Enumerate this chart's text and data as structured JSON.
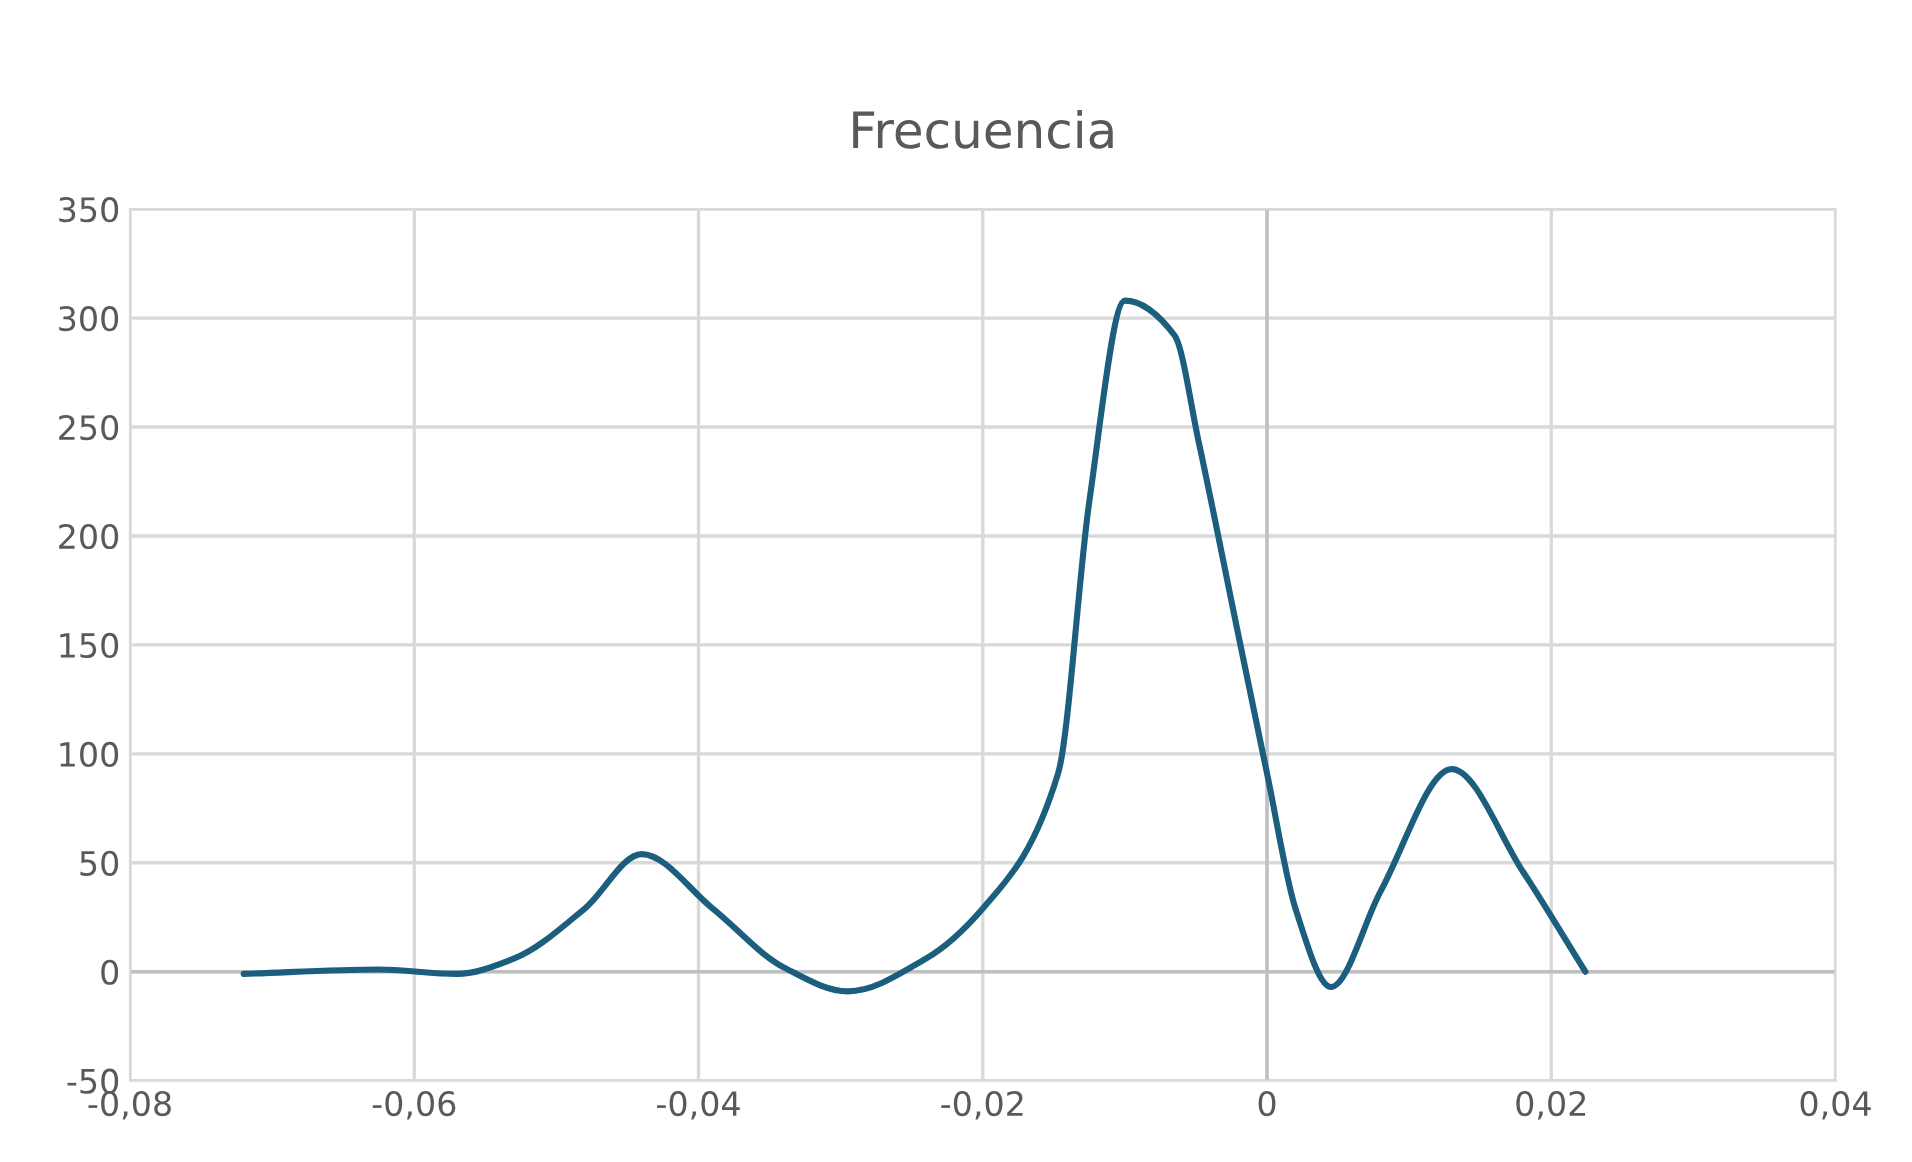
{
  "chart_data": {
    "type": "line",
    "title": "Frecuencia",
    "series": [
      {
        "color": "#1b5e7e",
        "x": [
          -0.072,
          -0.0625,
          -0.057,
          -0.053,
          -0.048,
          -0.044,
          -0.039,
          -0.034,
          -0.0295,
          -0.024,
          -0.02,
          -0.0147,
          -0.0125,
          -0.01,
          -0.0065,
          -0.0048,
          -0.002,
          0,
          0.002,
          0.0045,
          0.008,
          0.013,
          0.018,
          0.0224
        ],
        "values": [
          -1,
          1,
          -1,
          6,
          29,
          54,
          29,
          2,
          -9,
          6,
          29,
          91,
          216,
          308,
          292,
          243,
          154,
          91,
          29,
          -7,
          37,
          93,
          46,
          0
        ]
      }
    ],
    "xlim": [
      -0.08,
      0.04
    ],
    "xticks": [
      {
        "value": -0.08,
        "label": "-0,08"
      },
      {
        "value": -0.06,
        "label": "-0,06"
      },
      {
        "value": -0.04,
        "label": "-0,04"
      },
      {
        "value": -0.02,
        "label": "-0,02"
      },
      0,
      {
        "value": 0.02,
        "label": "0,02"
      },
      {
        "value": 0.04,
        "label": "0,04"
      }
    ],
    "ylim": [
      -50,
      350
    ],
    "yticks": [
      -50,
      0,
      50,
      100,
      150,
      200,
      250,
      300,
      350
    ],
    "grid": true,
    "marker": "none",
    "line_style": "solid",
    "legend": false
  }
}
